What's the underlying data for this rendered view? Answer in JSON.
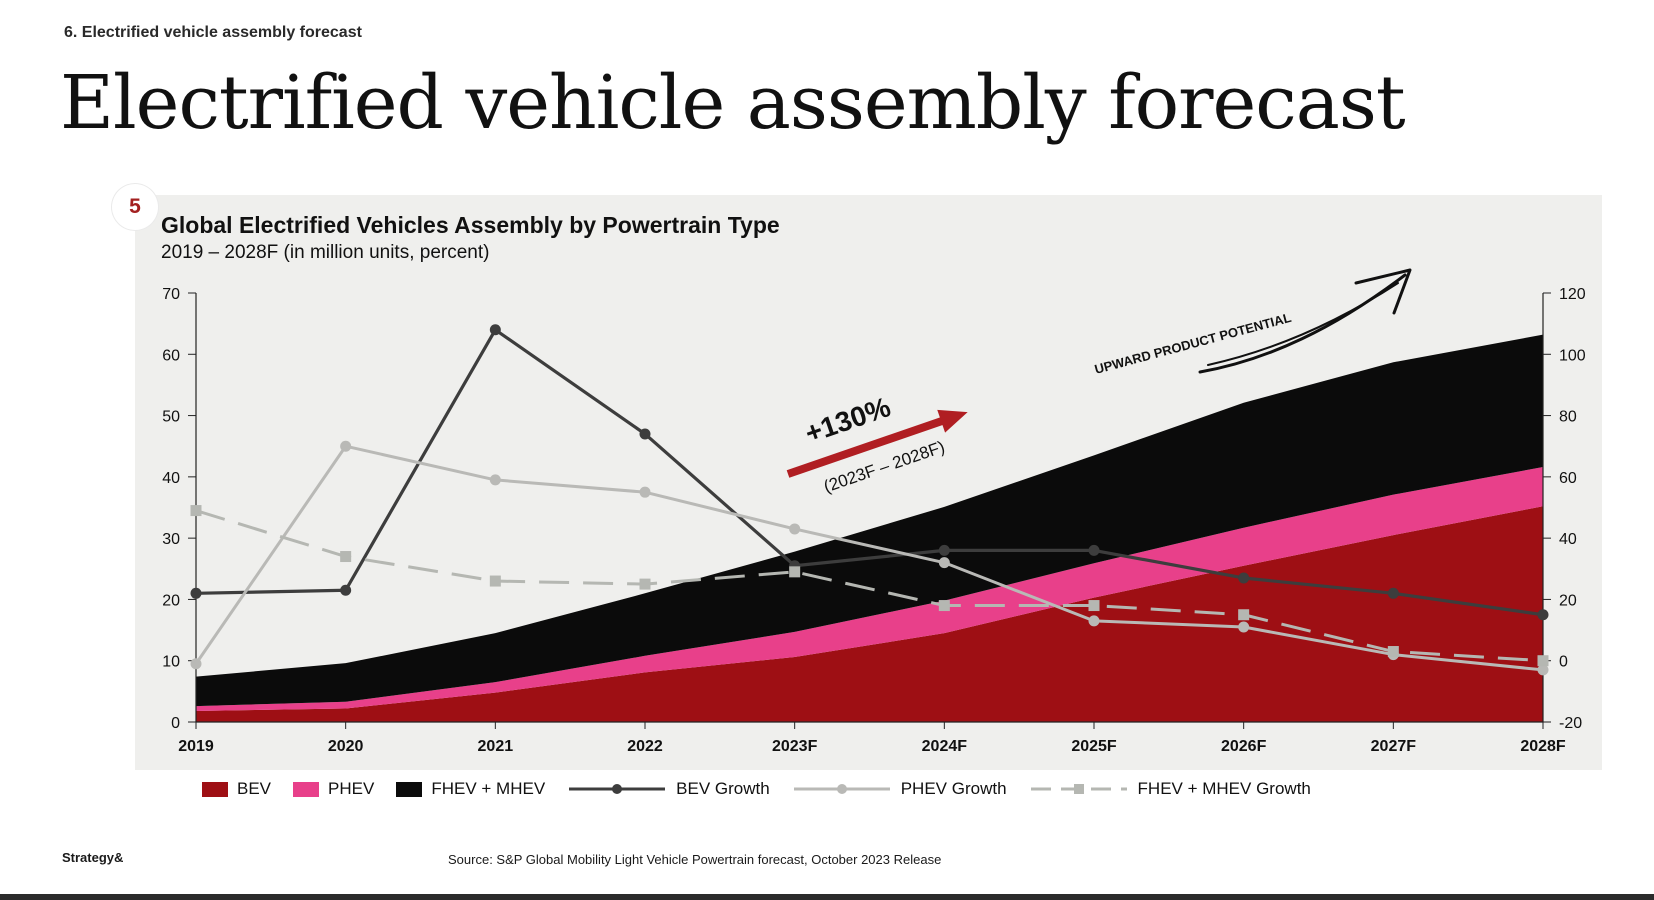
{
  "page": {
    "kicker": "6. Electrified vehicle assembly forecast",
    "title": "Electrified vehicle assembly forecast",
    "footer_brand": "Strategy&",
    "source": "Source: S&P Global Mobility Light Vehicle Powertrain forecast, October 2023 Release"
  },
  "panel": {
    "badge": "5"
  },
  "colors": {
    "bev": "#9e0f14",
    "phev": "#e8408a",
    "fhev_mhev": "#0b0b0b",
    "bev_growth": "#3d3d3d",
    "phev_growth": "#b9b9b6",
    "fhev_mhev_growth": "#b5b7b2",
    "annotation_red": "#b01e22",
    "panel_bg": "#efefed"
  },
  "chart_data": {
    "type": "area",
    "title": "Global Electrified Vehicles Assembly by Powertrain Type",
    "subtitle": "2019 – 2028F (in million units, percent)",
    "categories": [
      "2019",
      "2020",
      "2021",
      "2022",
      "2023F",
      "2024F",
      "2025F",
      "2026F",
      "2027F",
      "2028F"
    ],
    "y_left": {
      "min": 0,
      "max": 70,
      "ticks": [
        "0",
        "10",
        "20",
        "30",
        "40",
        "50",
        "60",
        "70"
      ]
    },
    "y_right": {
      "min": -20,
      "max": 120,
      "ticks": [
        "-20",
        "0",
        "20",
        "40",
        "60",
        "80",
        "100",
        "120"
      ]
    },
    "stacked_series": [
      {
        "name": "BEV",
        "values": [
          1.8,
          2.2,
          4.8,
          8.1,
          10.6,
          14.5,
          20.3,
          25.5,
          30.5,
          35.2
        ]
      },
      {
        "name": "PHEV",
        "values": [
          0.8,
          1.1,
          1.7,
          2.7,
          4.1,
          5.3,
          5.6,
          6.2,
          6.6,
          6.4
        ]
      },
      {
        "name": "FHEV + MHEV",
        "values": [
          4.8,
          6.3,
          8.0,
          10.2,
          13.1,
          15.3,
          17.6,
          20.4,
          21.6,
          21.6
        ]
      }
    ],
    "line_series": [
      {
        "name": "BEV Growth",
        "marker": "circle",
        "dash": "solid",
        "values": [
          22,
          23,
          108,
          74,
          31,
          36,
          36,
          27,
          22,
          15
        ]
      },
      {
        "name": "PHEV Growth",
        "marker": "circle",
        "dash": "solid",
        "values": [
          -1,
          70,
          59,
          55,
          43,
          32,
          13,
          11,
          2,
          -3
        ]
      },
      {
        "name": "FHEV + MHEV Growth",
        "marker": "square",
        "dash": "dashed",
        "values": [
          49,
          34,
          26,
          25,
          29,
          18,
          18,
          15,
          3,
          0
        ]
      }
    ],
    "annotations": {
      "growth_value": "+130%",
      "growth_period": "(2023F – 2028F)",
      "potential_label": "UPWARD PRODUCT POTENTIAL"
    },
    "legend": [
      "BEV",
      "PHEV",
      "FHEV + MHEV",
      "BEV Growth",
      "PHEV Growth",
      "FHEV + MHEV Growth"
    ],
    "legend_position": "bottom",
    "grid": false
  }
}
